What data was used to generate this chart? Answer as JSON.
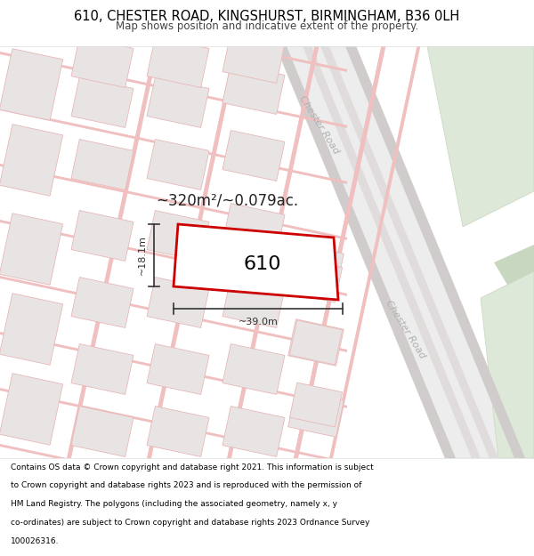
{
  "title_line1": "610, CHESTER ROAD, KINGSHURST, BIRMINGHAM, B36 0LH",
  "title_line2": "Map shows position and indicative extent of the property.",
  "footer_lines": [
    "Contains OS data © Crown copyright and database right 2021. This information is subject",
    "to Crown copyright and database rights 2023 and is reproduced with the permission of",
    "HM Land Registry. The polygons (including the associated geometry, namely x, y",
    "co-ordinates) are subject to Crown copyright and database rights 2023 Ordnance Survey",
    "100026316."
  ],
  "property_label": "610",
  "area_label": "~320m²/~0.079ac.",
  "width_label": "~39.0m",
  "height_label": "~18.1m",
  "map_bg": "#f7f2f2",
  "building_fill": "#e8e4e4",
  "building_edge": "#e8b8b8",
  "road_line_color": "#f0c0c0",
  "road_bg": "#f0eded",
  "chester_road_fill": "#eeebeb",
  "chester_road_edge": "#c8c0c0",
  "green_fill": "#dde8d8",
  "green_fill2": "#c8d8c0",
  "property_fill": "#ffffff",
  "property_edge": "#cc0000",
  "dim_color": "#333333",
  "road_label_color": "#b0b0b0",
  "title_fontsize": 10.5,
  "subtitle_fontsize": 8.5,
  "footer_fontsize": 6.5,
  "property_label_size": 16,
  "area_label_size": 12,
  "dim_fontsize": 8,
  "road_label_size": 8
}
